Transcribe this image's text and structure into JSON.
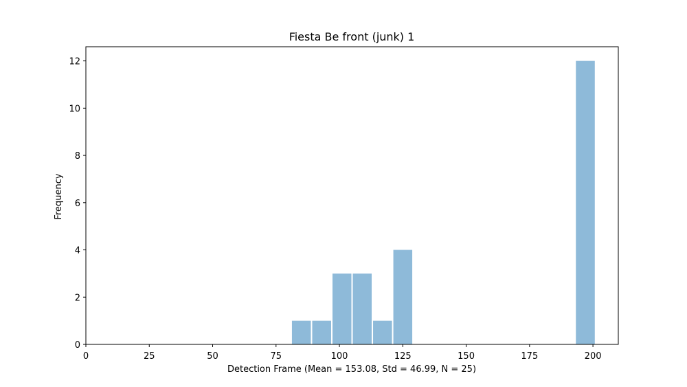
{
  "chart_data": {
    "type": "bar",
    "title": "Fiesta Be front (junk) 1",
    "xlabel": "Detection Frame (Mean = 153.08, Std = 46.99, N = 25)",
    "ylabel": "Frequency",
    "xlim": [
      0,
      210
    ],
    "ylim": [
      0,
      12.6
    ],
    "xticks": [
      0,
      25,
      50,
      75,
      100,
      125,
      150,
      175,
      200
    ],
    "yticks": [
      0,
      2,
      4,
      6,
      8,
      10,
      12
    ],
    "bar_color": "#8ebad9",
    "grid": false,
    "bins": [
      {
        "x0": 81,
        "x1": 89,
        "count": 1
      },
      {
        "x0": 89,
        "x1": 97,
        "count": 1
      },
      {
        "x0": 97,
        "x1": 105,
        "count": 3
      },
      {
        "x0": 105,
        "x1": 113,
        "count": 3
      },
      {
        "x0": 113,
        "x1": 121,
        "count": 1
      },
      {
        "x0": 121,
        "x1": 129,
        "count": 4
      },
      {
        "x0": 193,
        "x1": 201,
        "count": 12
      }
    ]
  }
}
